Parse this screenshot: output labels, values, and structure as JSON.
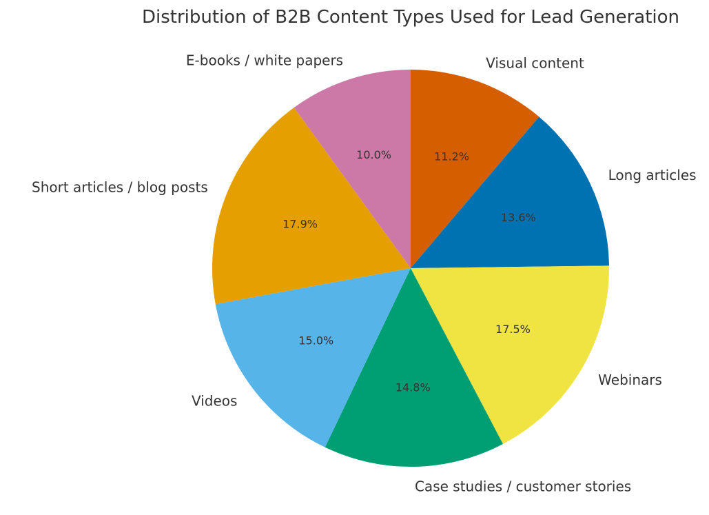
{
  "chart_data": {
    "type": "pie",
    "title": "Distribution of B2B Content Types Used for Lead Generation",
    "start_angle_deg": 90,
    "direction": "clockwise",
    "slices": [
      {
        "label": "Visual content",
        "value": 11.2,
        "pct_text": "11.2%",
        "color": "#D55E00"
      },
      {
        "label": "Long articles",
        "value": 13.6,
        "pct_text": "13.6%",
        "color": "#0072B2"
      },
      {
        "label": "Webinars",
        "value": 17.5,
        "pct_text": "17.5%",
        "color": "#F0E442"
      },
      {
        "label": "Case studies / customer stories",
        "value": 14.8,
        "pct_text": "14.8%",
        "color": "#009E73"
      },
      {
        "label": "Videos",
        "value": 15.0,
        "pct_text": "15.0%",
        "color": "#56B4E9"
      },
      {
        "label": "Short articles / blog posts",
        "value": 17.9,
        "pct_text": "17.9%",
        "color": "#E69F00"
      },
      {
        "label": "E-books / white papers",
        "value": 10.0,
        "pct_text": "10.0%",
        "color": "#CC79A7"
      }
    ]
  }
}
